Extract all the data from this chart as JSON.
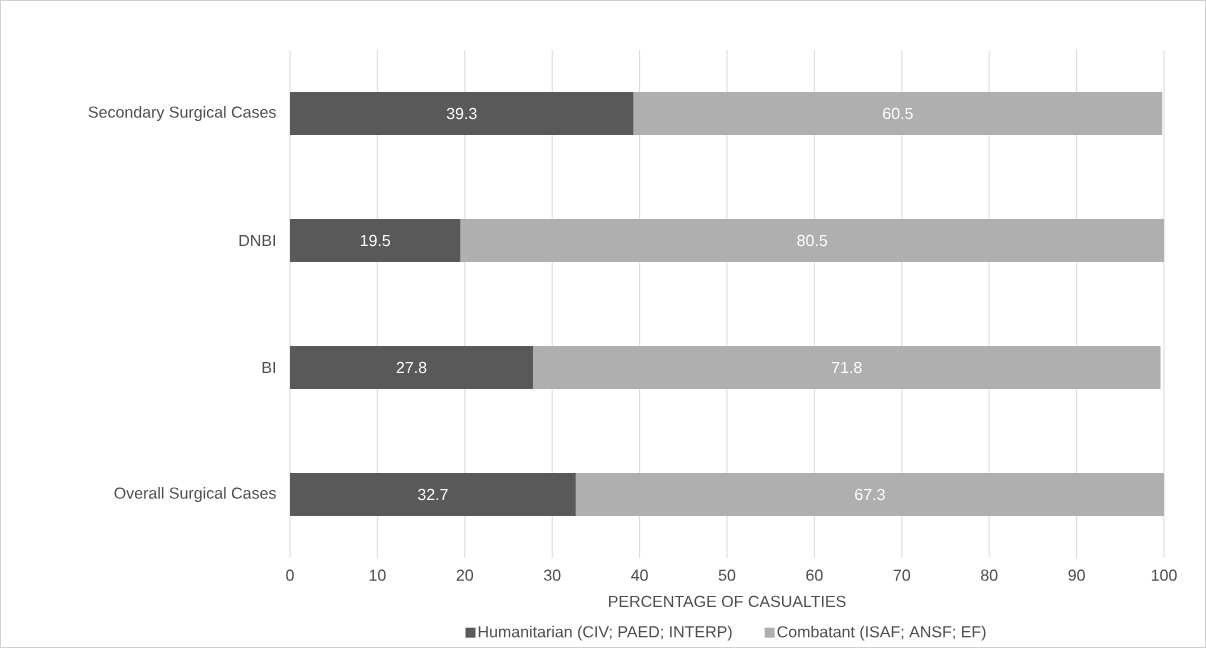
{
  "chart_data": {
    "type": "bar",
    "orientation": "horizontal",
    "stacked": true,
    "categories": [
      "Secondary Surgical Cases",
      "DNBI",
      "BI",
      "Overall Surgical Cases"
    ],
    "series": [
      {
        "name": "Humanitarian (CIV; PAED; INTERP)",
        "color": "#595959",
        "values": [
          39.3,
          19.5,
          27.8,
          32.7
        ]
      },
      {
        "name": "Combatant (ISAF; ANSF; EF)",
        "color": "#afafaf",
        "values": [
          60.5,
          80.5,
          71.8,
          67.3
        ]
      }
    ],
    "xlabel": "PERCENTAGE OF CASUALTIES",
    "xlim": [
      0,
      100
    ],
    "xticks": [
      0,
      10,
      20,
      30,
      40,
      50,
      60,
      70,
      80,
      90,
      100
    ],
    "grid": "x",
    "legend": "bottom",
    "data_labels": true
  }
}
